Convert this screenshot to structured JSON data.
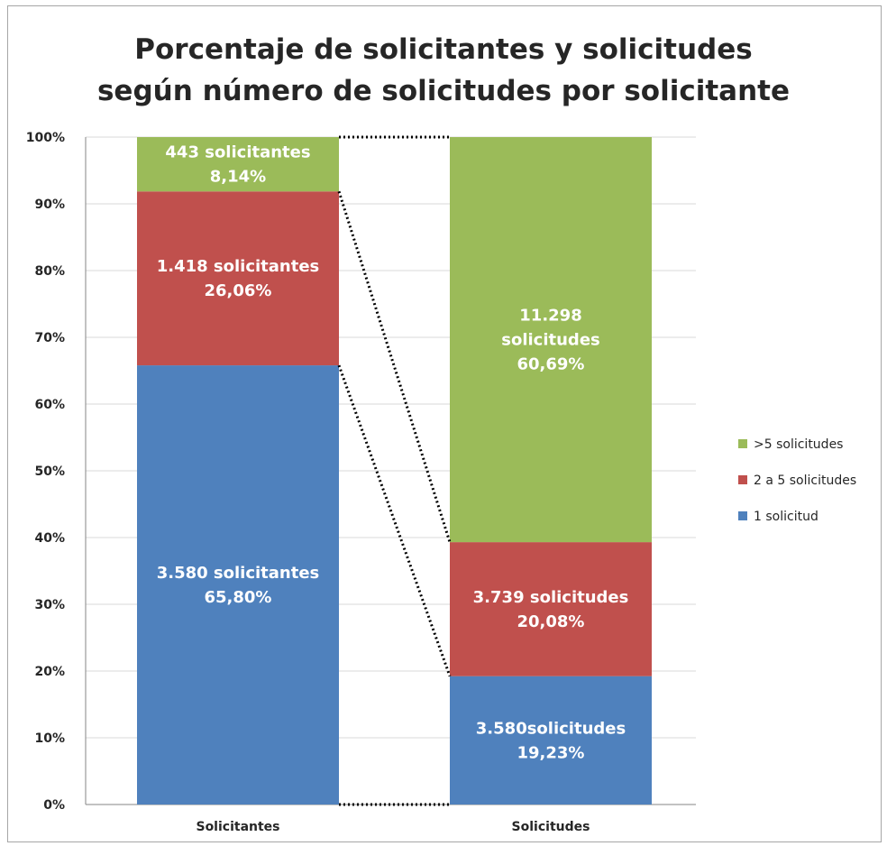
{
  "chart_data": {
    "type": "bar",
    "stacked": true,
    "percent": true,
    "title": [
      "Porcentaje de solicitantes y solicitudes",
      "según número de solicitudes por solicitante"
    ],
    "categories": [
      "Solicitantes",
      "Solicitudes"
    ],
    "y_ticks": [
      "0%",
      "10%",
      "20%",
      "30%",
      "40%",
      "50%",
      "60%",
      "70%",
      "80%",
      "90%",
      "100%"
    ],
    "ylim": [
      0,
      100
    ],
    "grid": true,
    "legend_position": "right",
    "series": [
      {
        "name": "1 solicitud",
        "color": "#4f81bd",
        "values": [
          65.8,
          19.23
        ],
        "labels": [
          [
            "3.580 solicitantes",
            "65,80%"
          ],
          [
            "3.580solicitudes",
            "19,23%"
          ]
        ]
      },
      {
        "name": "2 a 5 solicitudes",
        "color": "#c0504d",
        "values": [
          26.06,
          20.08
        ],
        "labels": [
          [
            "1.418 solicitantes",
            "26,06%"
          ],
          [
            "3.739 solicitudes",
            "20,08%"
          ]
        ]
      },
      {
        "name": ">5 solicitudes",
        "color": "#9bbb59",
        "values": [
          8.14,
          60.69
        ],
        "labels": [
          [
            "443 solicitantes",
            "8,14%"
          ],
          [
            "11.298",
            "solicitudes",
            "60,69%"
          ]
        ]
      }
    ],
    "series_lines": "dotted black connectors between the tops of corresponding segments"
  }
}
